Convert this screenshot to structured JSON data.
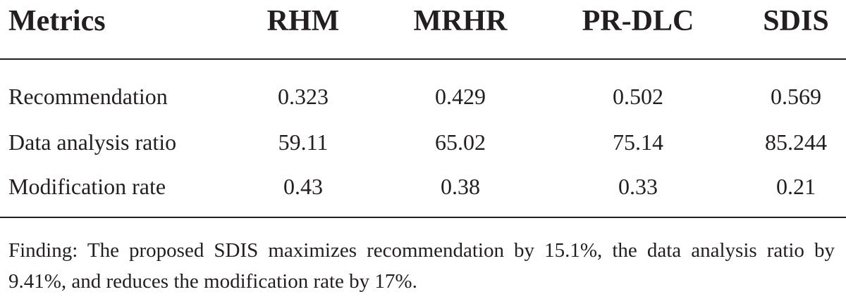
{
  "table": {
    "headers": [
      "Metrics",
      "RHM",
      "MRHR",
      "PR-DLC",
      "SDIS"
    ],
    "rows": [
      {
        "metric": "Recommendation",
        "values": [
          "0.323",
          "0.429",
          "0.502",
          "0.569"
        ]
      },
      {
        "metric": "Data analysis ratio",
        "values": [
          "59.11",
          "65.02",
          "75.14",
          "85.244"
        ]
      },
      {
        "metric": "Modification rate",
        "values": [
          "0.43",
          "0.38",
          "0.33",
          "0.21"
        ]
      }
    ],
    "footnote": "Finding: The proposed SDIS maximizes recommendation by 15.1%, the data analysis ratio by 9.41%, and reduces the modification rate by 17%."
  }
}
